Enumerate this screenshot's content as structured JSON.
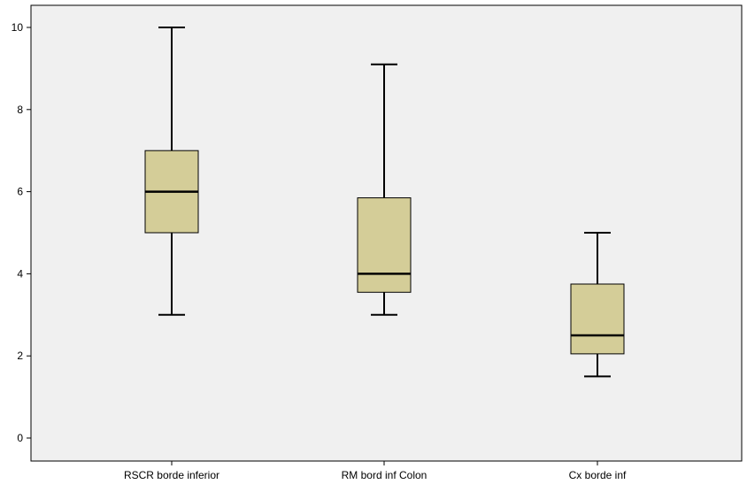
{
  "chart_data": {
    "type": "boxplot",
    "categories": [
      "RSCR borde inferior",
      "RM bord inf Colon",
      "Cx borde inf"
    ],
    "boxes": [
      {
        "category": "RSCR borde inferior",
        "min": 3,
        "q1": 5,
        "median": 6,
        "q3": 7,
        "max": 10
      },
      {
        "category": "RM bord inf Colon",
        "min": 3,
        "q1": 3.55,
        "median": 4,
        "q3": 5.85,
        "max": 9.1
      },
      {
        "category": "Cx borde inf",
        "min": 1.5,
        "q1": 2.05,
        "median": 2.5,
        "q3": 3.75,
        "max": 5
      }
    ],
    "yticks": [
      0,
      2,
      4,
      6,
      8,
      10
    ],
    "ylim": [
      -0.55,
      10.6
    ],
    "grid": false,
    "colors": {
      "plot_background": "#f0f0f0",
      "box_fill": "#d4cd98",
      "stroke": "#000000"
    }
  }
}
